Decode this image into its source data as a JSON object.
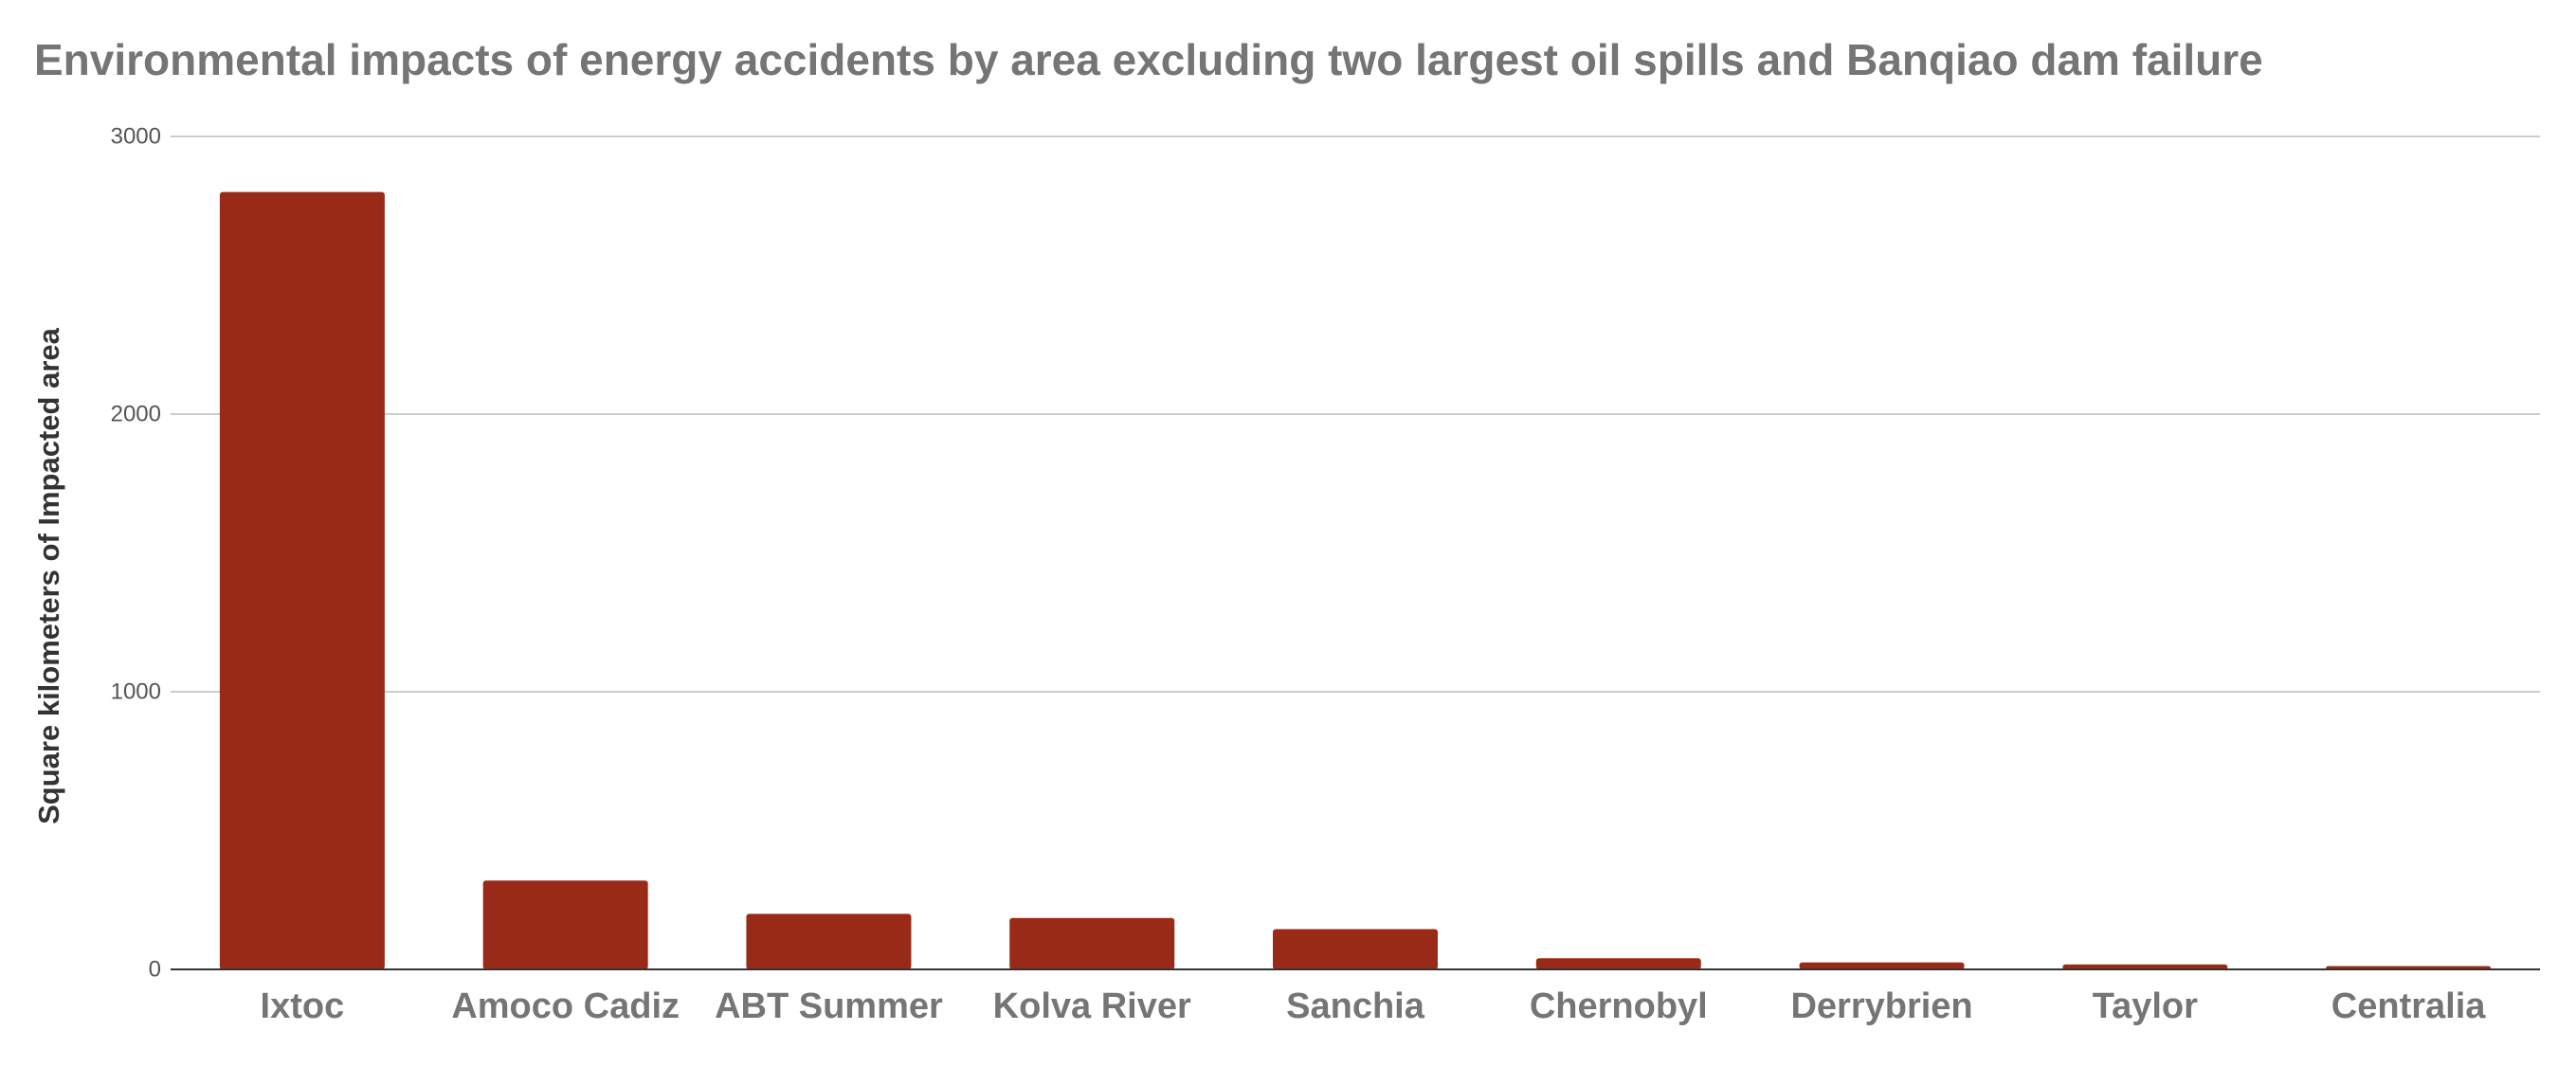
{
  "chart_data": {
    "type": "bar",
    "title": "Environmental impacts of energy accidents by area excluding two largest oil spills and Banqiao dam failure",
    "xlabel": "",
    "ylabel": "Square kilometers of Impacted area",
    "categories": [
      "Ixtoc",
      "Amoco Cadiz",
      "ABT Summer",
      "Kolva River",
      "Sanchia",
      "Chernobyl",
      "Derrybrien",
      "Taylor",
      "Centralia"
    ],
    "values": [
      2800,
      320,
      200,
      185,
      145,
      40,
      25,
      18,
      12
    ],
    "ylim": [
      0,
      3000
    ],
    "yticks": [
      0,
      1000,
      2000,
      3000
    ],
    "grid": true,
    "legend": "none",
    "bar_color": "#992a17",
    "grid_color": "#cccccc",
    "axis_color": "#333333",
    "tick_label_color": "#555555",
    "category_label_color": "#757575"
  }
}
